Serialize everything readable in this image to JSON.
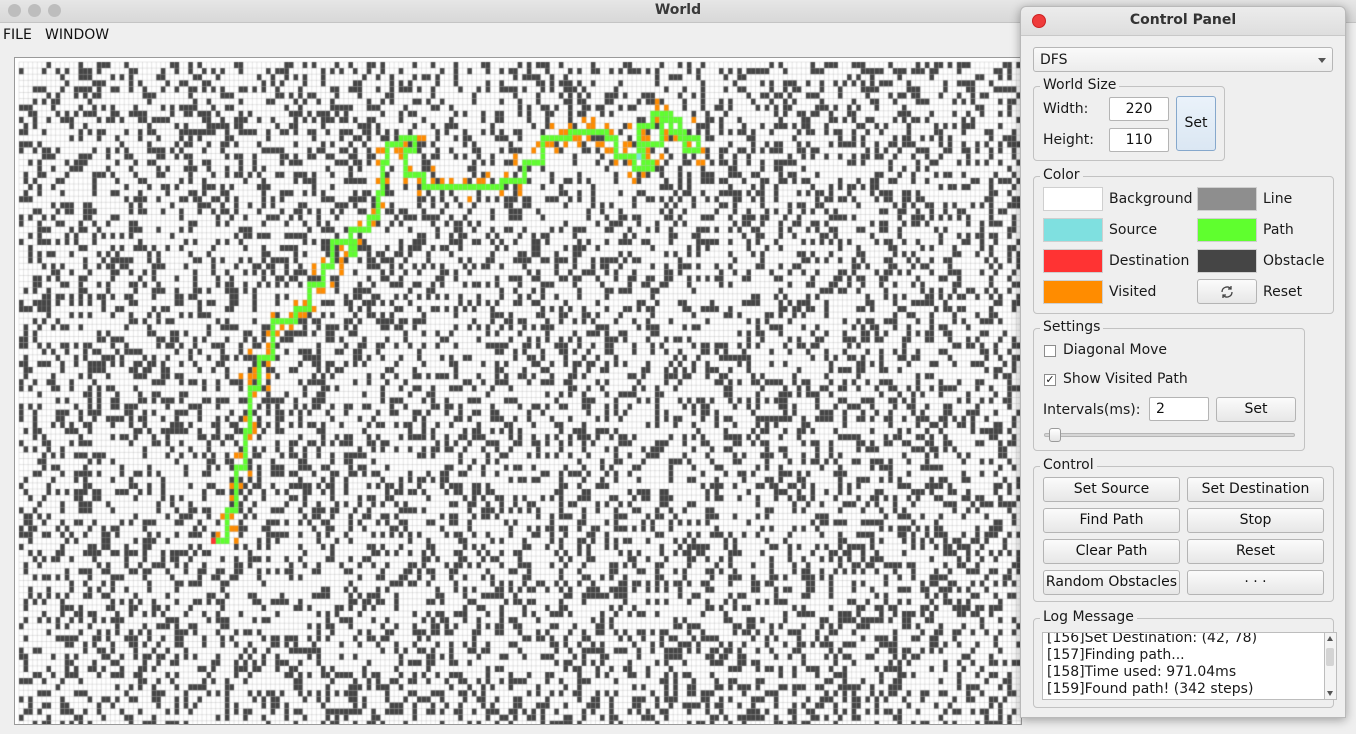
{
  "window": {
    "title": "World"
  },
  "menu": [
    "FILE",
    "WINDOW"
  ],
  "panel": {
    "title": "Control Panel",
    "algorithm": "DFS",
    "world_size": {
      "title": "World Size",
      "width_label": "Width:",
      "width_value": "220",
      "height_label": "Height:",
      "height_value": "110",
      "set_label": "Set"
    },
    "color": {
      "title": "Color",
      "items": [
        {
          "label": "Background",
          "color": "#ffffff"
        },
        {
          "label": "Line",
          "color": "#8e8e8e"
        },
        {
          "label": "Source",
          "color": "#7fe0e0"
        },
        {
          "label": "Path",
          "color": "#5fff2e"
        },
        {
          "label": "Destination",
          "color": "#ff3333"
        },
        {
          "label": "Obstacle",
          "color": "#454545"
        },
        {
          "label": "Visited",
          "color": "#ff8c00"
        }
      ],
      "reset_label": "Reset",
      "reset_icon": "refresh-icon"
    },
    "settings": {
      "title": "Settings",
      "diagonal_move": {
        "label": "Diagonal Move",
        "checked": false
      },
      "show_visited": {
        "label": "Show Visited Path",
        "checked": true
      },
      "interval_label": "Intervals(ms):",
      "interval_value": "2",
      "set_label": "Set",
      "slider_value": 0.02
    },
    "control": {
      "title": "Control",
      "buttons": [
        "Set Source",
        "Set Destination",
        "Find Path",
        "Stop",
        "Clear Path",
        "Reset",
        "Random Obstacles",
        "· · ·"
      ]
    },
    "log": {
      "title": "Log Message",
      "lines": [
        "[156]Set Destination: (42, 78)",
        "[157]Finding path...",
        "[158]Time used: 971.04ms",
        "[159]Found path! (342 steps)"
      ]
    }
  }
}
